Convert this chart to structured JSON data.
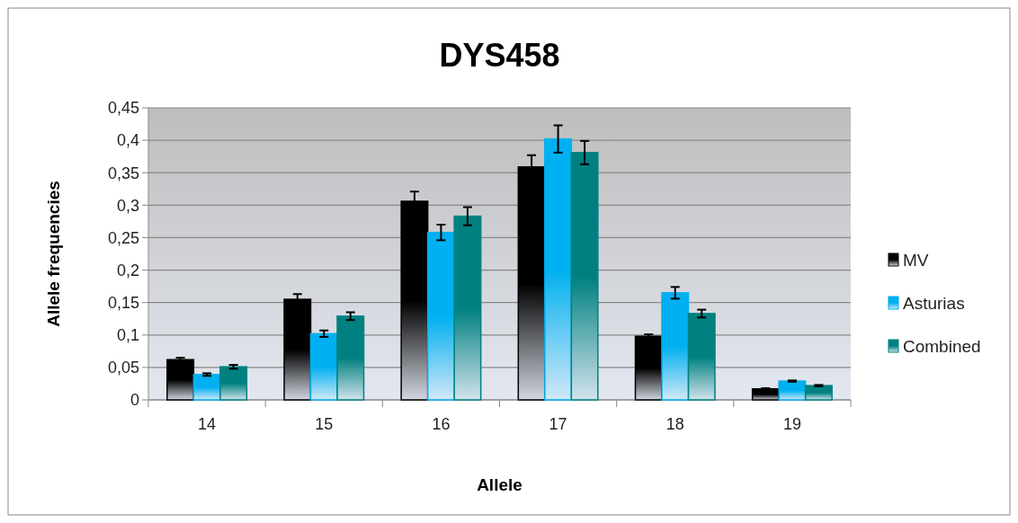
{
  "chart_data": {
    "type": "bar",
    "title": "DYS458",
    "xlabel": "Allele",
    "ylabel": "Allele frequencies",
    "categories": [
      "14",
      "15",
      "16",
      "17",
      "18",
      "19"
    ],
    "series": [
      {
        "name": "MV",
        "color": "#000000",
        "values": [
          0.062,
          0.155,
          0.306,
          0.359,
          0.098,
          0.017
        ],
        "errors": [
          0.003,
          0.008,
          0.015,
          0.018,
          0.003,
          0.001
        ]
      },
      {
        "name": "Asturias",
        "color": "#00b0f0",
        "values": [
          0.039,
          0.102,
          0.258,
          0.402,
          0.165,
          0.029
        ],
        "errors": [
          0.002,
          0.005,
          0.012,
          0.021,
          0.009,
          0.001
        ]
      },
      {
        "name": "Combined",
        "color": "#008080",
        "values": [
          0.051,
          0.129,
          0.283,
          0.381,
          0.133,
          0.022
        ],
        "errors": [
          0.003,
          0.006,
          0.014,
          0.018,
          0.006,
          0.001
        ]
      }
    ],
    "ylim": [
      0,
      0.45
    ],
    "yticks": [
      {
        "value": 0,
        "label": "0"
      },
      {
        "value": 0.05,
        "label": "0,05"
      },
      {
        "value": 0.1,
        "label": "0,1"
      },
      {
        "value": 0.15,
        "label": "0,15"
      },
      {
        "value": 0.2,
        "label": "0,2"
      },
      {
        "value": 0.25,
        "label": "0,25"
      },
      {
        "value": 0.3,
        "label": "0,3"
      },
      {
        "value": 0.35,
        "label": "0,35"
      },
      {
        "value": 0.4,
        "label": "0,4"
      },
      {
        "value": 0.45,
        "label": "0,45"
      }
    ],
    "grid": "y",
    "legend": "right"
  }
}
